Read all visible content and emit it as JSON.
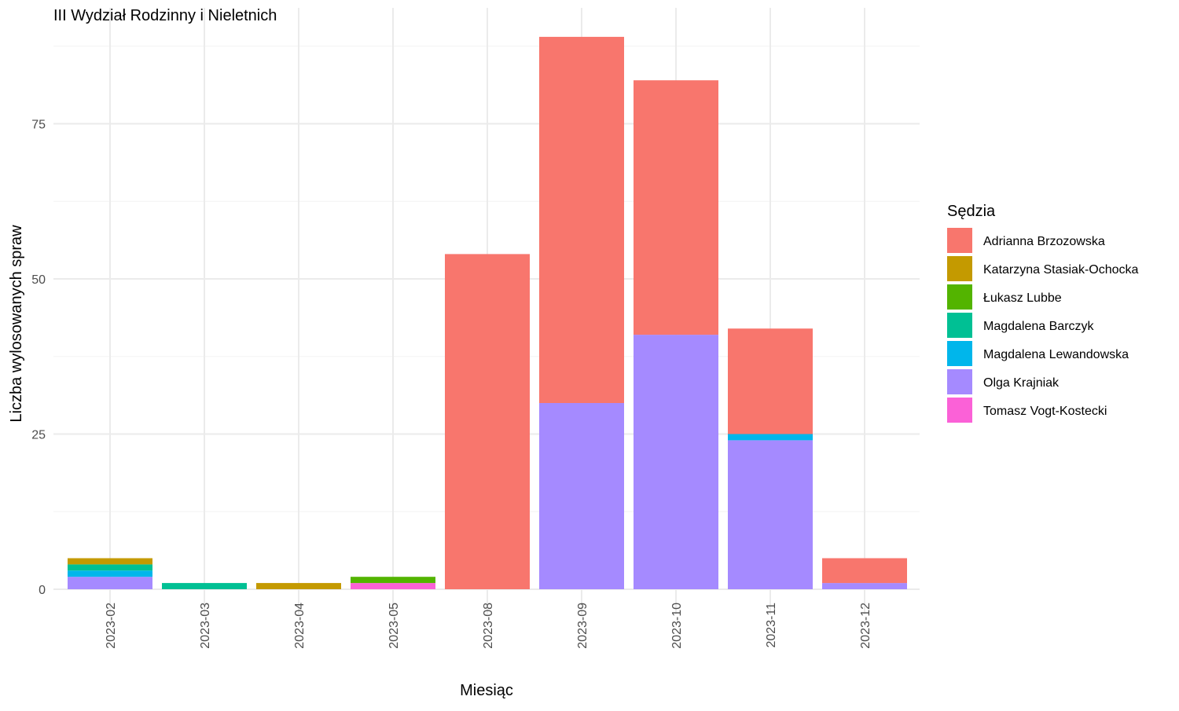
{
  "chart_data": {
    "type": "bar",
    "stacked": true,
    "title": "III Wydział Rodzinny i Nieletnich",
    "xlabel": "Miesiąc",
    "ylabel": "Liczba wylosowanych spraw",
    "ylim": [
      0,
      93
    ],
    "y_ticks": [
      0,
      25,
      50,
      75
    ],
    "grid": true,
    "legend_title": "Sędzia",
    "legend_position": "right",
    "categories": [
      "2023-02",
      "2023-03",
      "2023-04",
      "2023-05",
      "2023-08",
      "2023-09",
      "2023-10",
      "2023-11",
      "2023-12"
    ],
    "stack_order": [
      "Olga Krajniak",
      "Tomasz Vogt-Kostecki",
      "Magdalena Lewandowska",
      "Magdalena Barczyk",
      "Łukasz Lubbe",
      "Katarzyna Stasiak-Ochocka",
      "Adrianna Brzozowska"
    ],
    "series": [
      {
        "name": "Adrianna Brzozowska",
        "color": "#F8766D",
        "values": [
          0,
          0,
          0,
          0,
          54,
          59,
          41,
          17,
          4
        ]
      },
      {
        "name": "Katarzyna Stasiak-Ochocka",
        "color": "#C49A00",
        "values": [
          1,
          0,
          1,
          0,
          0,
          0,
          0,
          0,
          0
        ]
      },
      {
        "name": "Łukasz Lubbe",
        "color": "#53B400",
        "values": [
          0,
          0,
          0,
          1,
          0,
          0,
          0,
          0,
          0
        ]
      },
      {
        "name": "Magdalena Barczyk",
        "color": "#00C094",
        "values": [
          1,
          1,
          0,
          0,
          0,
          0,
          0,
          0,
          0
        ]
      },
      {
        "name": "Magdalena Lewandowska",
        "color": "#00B6EB",
        "values": [
          1,
          0,
          0,
          0,
          0,
          0,
          0,
          1,
          0
        ]
      },
      {
        "name": "Olga Krajniak",
        "color": "#A58AFF",
        "values": [
          2,
          0,
          0,
          0,
          0,
          30,
          41,
          24,
          1
        ]
      },
      {
        "name": "Tomasz Vogt-Kostecki",
        "color": "#FB61D7",
        "values": [
          0,
          0,
          0,
          1,
          0,
          0,
          0,
          0,
          0
        ]
      }
    ]
  }
}
